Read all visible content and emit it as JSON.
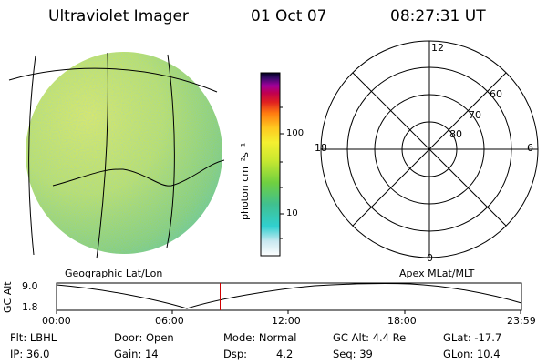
{
  "header": {
    "instrument": "Ultraviolet Imager",
    "date": "01 Oct 07",
    "time": "08:27:31 UT"
  },
  "colorbar": {
    "tick_labels": [
      "100",
      "10"
    ],
    "unit_label": "photon cm⁻²s⁻¹"
  },
  "polar_plot": {
    "mlt_labels": [
      "12",
      "18",
      "6",
      "0"
    ],
    "lat_labels": [
      "60",
      "70",
      "80"
    ]
  },
  "image_panel": {
    "coordinate_label": "Geographic Lat/Lon"
  },
  "polar_panel": {
    "coordinate_label": "Apex MLat/MLT"
  },
  "orbit_plot": {
    "ylabel": "GC Alt",
    "y_ticks": [
      "9.0",
      "1.8"
    ],
    "x_ticks": [
      "00:00",
      "06:00",
      "12:00",
      "18:00",
      "23:59"
    ],
    "current_time_marker": "08:27:31",
    "marker_color": "#d00000"
  },
  "status": {
    "filter": "Flt: LBHL",
    "ip": "IP: 36.0",
    "door": "Door: Open",
    "gain": "Gain: 14",
    "mode": "Mode: Normal",
    "dsp_label": "Dsp:",
    "dsp_value": "4.2",
    "gc_alt": "GC Alt: 4.4 Re",
    "seq": "Seq: 39",
    "glat": "GLat: -17.7",
    "glon": "GLon: 10.4"
  }
}
